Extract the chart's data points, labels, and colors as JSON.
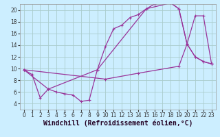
{
  "bg_color": "#cceeff",
  "line_color": "#993399",
  "grid_color": "#aacccc",
  "xlabel": "Windchill (Refroidissement éolien,°C)",
  "xlabel_fontsize": 7,
  "ylim": [
    3,
    21
  ],
  "xlim": [
    -0.5,
    23.5
  ],
  "yticks": [
    4,
    6,
    8,
    10,
    12,
    14,
    16,
    18,
    20
  ],
  "xticks": [
    0,
    1,
    2,
    3,
    4,
    5,
    6,
    7,
    8,
    9,
    10,
    11,
    12,
    13,
    14,
    15,
    16,
    17,
    18,
    19,
    20,
    21,
    22,
    23
  ],
  "series1_x": [
    0,
    1,
    2,
    3,
    4,
    5,
    6,
    7,
    8,
    9,
    10,
    11,
    12,
    13,
    14,
    15,
    16,
    17,
    18,
    19,
    20,
    21,
    22,
    23
  ],
  "series1_y": [
    9.8,
    9.0,
    5.0,
    6.5,
    6.0,
    5.7,
    5.5,
    4.4,
    4.6,
    9.8,
    13.8,
    16.8,
    17.4,
    18.7,
    19.2,
    20.2,
    21.0,
    21.3,
    21.2,
    20.2,
    14.2,
    12.0,
    11.2,
    10.8
  ],
  "series2_x": [
    0,
    3,
    9,
    15,
    18,
    19,
    20,
    21,
    22,
    23
  ],
  "series2_y": [
    9.8,
    6.5,
    9.8,
    20.2,
    21.2,
    20.2,
    14.2,
    12.0,
    11.2,
    10.8
  ],
  "series3_x": [
    0,
    10,
    14,
    19,
    20,
    21,
    22,
    23
  ],
  "series3_y": [
    9.8,
    8.2,
    9.2,
    10.4,
    14.2,
    19.0,
    19.0,
    10.8
  ],
  "tick_fontsize": 5.5,
  "tick_color": "#333333"
}
